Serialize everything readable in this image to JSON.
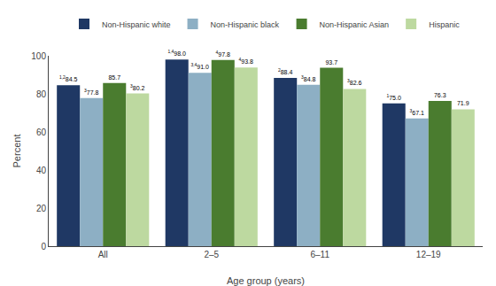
{
  "chart_data": {
    "type": "bar",
    "categories": [
      "All",
      "2–5",
      "6–11",
      "12–19"
    ],
    "series": [
      {
        "name": "Non-Hispanic white",
        "color": "#1f3864",
        "values": [
          84.5,
          98.0,
          88.4,
          75.0
        ],
        "value_labels": [
          "84.5",
          "98.0",
          "88.4",
          "75.0"
        ],
        "superscripts": [
          "1,2",
          "1,4",
          "2",
          "1"
        ]
      },
      {
        "name": "Non-Hispanic black",
        "color": "#8dafc4",
        "values": [
          77.8,
          91.0,
          84.8,
          67.1
        ],
        "value_labels": [
          "77.8",
          "91.0",
          "84.8",
          "67.1"
        ],
        "superscripts": [
          "3",
          "3,4",
          "3",
          "3"
        ]
      },
      {
        "name": "Non-Hispanic Asian",
        "color": "#4a7c2f",
        "values": [
          85.7,
          97.8,
          93.7,
          76.3
        ],
        "value_labels": [
          "85.7",
          "97.8",
          "93.7",
          "76.3"
        ],
        "superscripts": [
          null,
          "4",
          null,
          null
        ]
      },
      {
        "name": "Hispanic",
        "color": "#bdd9a0",
        "values": [
          80.2,
          93.8,
          82.6,
          71.9
        ],
        "value_labels": [
          "80.2",
          "93.8",
          "82.6",
          "71.9"
        ],
        "superscripts": [
          "3",
          "4",
          "3",
          null
        ]
      }
    ],
    "xlabel": "Age group (years)",
    "ylabel": "Percent",
    "ylim": [
      0,
      100
    ],
    "yticks": [
      0,
      20,
      40,
      60,
      80,
      100
    ],
    "grid": false,
    "legend": "top",
    "data_labels": true
  }
}
